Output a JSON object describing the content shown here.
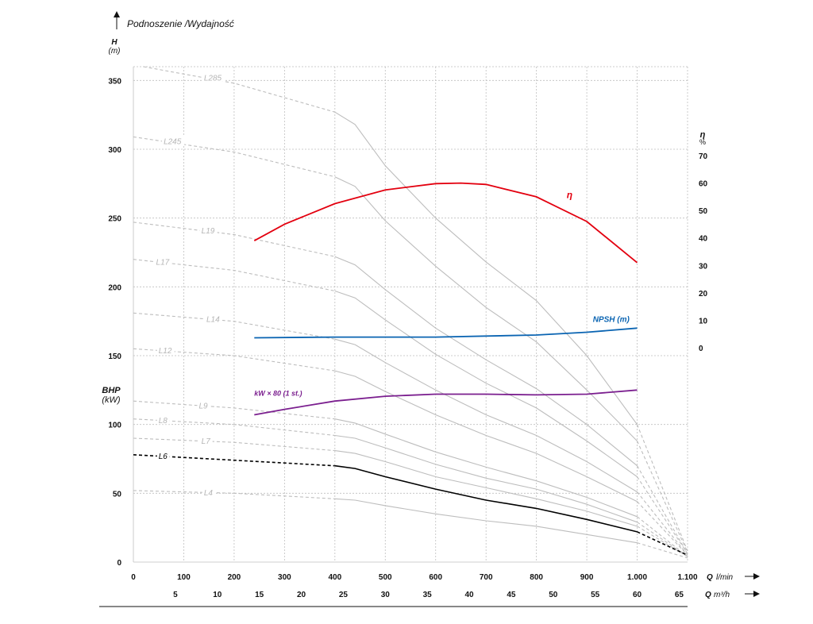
{
  "title": "Podnoszenie /Wydajność",
  "axes": {
    "h_label": "H",
    "h_unit": "(m)",
    "eta_label": "η",
    "eta_unit": "%",
    "bhp_label": "BHP",
    "bhp_unit": "(kW)",
    "q_lmin_label": "Q",
    "q_lmin_unit": "l/min",
    "q_m3h_label": "Q",
    "q_m3h_unit": "m³/h"
  },
  "chart_data": {
    "type": "line",
    "xlabel": "Q l/min",
    "ylabel": "H (m)",
    "xlim": [
      0,
      1100
    ],
    "ylim": [
      0,
      360
    ],
    "x_ticks": [
      0,
      100,
      200,
      300,
      400,
      500,
      600,
      700,
      800,
      900,
      1000,
      1100
    ],
    "x_tick_labels": [
      "0",
      "100",
      "200",
      "300",
      "400",
      "500",
      "600",
      "700",
      "800",
      "900",
      "1.000",
      "1.100"
    ],
    "y_ticks": [
      0,
      50,
      100,
      150,
      200,
      250,
      300,
      350
    ],
    "y_tick_labels": [
      "0",
      "50",
      "100",
      "150",
      "200",
      "250",
      "300",
      "350"
    ],
    "x2_ticks": [
      5,
      10,
      15,
      20,
      25,
      30,
      35,
      40,
      45,
      50,
      55,
      60,
      65
    ],
    "x2_tick_labels": [
      "5",
      "10",
      "15",
      "20",
      "25",
      "30",
      "35",
      "40",
      "45",
      "50",
      "55",
      "60",
      "65"
    ],
    "eta_ticks": [
      0,
      10,
      20,
      30,
      40,
      50,
      60,
      70
    ],
    "eta_tick_labels": [
      "0",
      "10",
      "20",
      "30",
      "40",
      "50",
      "60",
      "70"
    ],
    "grid": true,
    "head_curves": [
      {
        "name": "L285",
        "color": "#bdbdbd",
        "highlight": false,
        "points": [
          [
            20,
            360
          ],
          [
            200,
            348
          ],
          [
            400,
            327
          ],
          [
            440,
            318
          ],
          [
            500,
            288
          ],
          [
            600,
            250
          ],
          [
            700,
            218
          ],
          [
            800,
            190
          ],
          [
            900,
            150
          ],
          [
            1000,
            100
          ],
          [
            1100,
            8
          ]
        ]
      },
      {
        "name": "L245",
        "color": "#bdbdbd",
        "highlight": false,
        "points": [
          [
            0,
            309
          ],
          [
            200,
            298
          ],
          [
            400,
            280
          ],
          [
            440,
            273
          ],
          [
            500,
            248
          ],
          [
            600,
            215
          ],
          [
            700,
            185
          ],
          [
            800,
            160
          ],
          [
            900,
            125
          ],
          [
            1000,
            88
          ],
          [
            1100,
            7
          ]
        ]
      },
      {
        "name": "L19",
        "color": "#bdbdbd",
        "highlight": false,
        "points": [
          [
            0,
            247
          ],
          [
            200,
            238
          ],
          [
            400,
            222
          ],
          [
            440,
            216
          ],
          [
            500,
            198
          ],
          [
            600,
            170
          ],
          [
            700,
            147
          ],
          [
            800,
            126
          ],
          [
            900,
            100
          ],
          [
            1000,
            70
          ],
          [
            1100,
            6
          ]
        ]
      },
      {
        "name": "L17",
        "color": "#bdbdbd",
        "highlight": false,
        "points": [
          [
            0,
            220
          ],
          [
            200,
            212
          ],
          [
            400,
            197
          ],
          [
            440,
            192
          ],
          [
            500,
            176
          ],
          [
            600,
            151
          ],
          [
            700,
            130
          ],
          [
            800,
            112
          ],
          [
            900,
            88
          ],
          [
            1000,
            62
          ],
          [
            1100,
            6
          ]
        ]
      },
      {
        "name": "L14",
        "color": "#bdbdbd",
        "highlight": false,
        "points": [
          [
            0,
            181
          ],
          [
            200,
            175
          ],
          [
            400,
            162
          ],
          [
            440,
            158
          ],
          [
            500,
            145
          ],
          [
            600,
            125
          ],
          [
            700,
            107
          ],
          [
            800,
            92
          ],
          [
            900,
            73
          ],
          [
            1000,
            51
          ],
          [
            1100,
            5
          ]
        ]
      },
      {
        "name": "L12",
        "color": "#bdbdbd",
        "highlight": false,
        "points": [
          [
            0,
            155
          ],
          [
            200,
            150
          ],
          [
            400,
            139
          ],
          [
            440,
            135
          ],
          [
            500,
            124
          ],
          [
            600,
            107
          ],
          [
            700,
            92
          ],
          [
            800,
            79
          ],
          [
            900,
            62
          ],
          [
            1000,
            44
          ],
          [
            1100,
            5
          ]
        ]
      },
      {
        "name": "L9",
        "color": "#bdbdbd",
        "highlight": false,
        "points": [
          [
            0,
            117
          ],
          [
            200,
            112
          ],
          [
            400,
            104
          ],
          [
            440,
            101
          ],
          [
            500,
            93
          ],
          [
            600,
            80
          ],
          [
            700,
            69
          ],
          [
            800,
            59
          ],
          [
            900,
            47
          ],
          [
            1000,
            33
          ],
          [
            1100,
            4
          ]
        ]
      },
      {
        "name": "L8",
        "color": "#bdbdbd",
        "highlight": false,
        "points": [
          [
            0,
            104
          ],
          [
            200,
            100
          ],
          [
            400,
            92
          ],
          [
            440,
            90
          ],
          [
            500,
            83
          ],
          [
            600,
            71
          ],
          [
            700,
            61
          ],
          [
            800,
            53
          ],
          [
            900,
            42
          ],
          [
            1000,
            29
          ],
          [
            1100,
            4
          ]
        ]
      },
      {
        "name": "L7",
        "color": "#bdbdbd",
        "highlight": false,
        "points": [
          [
            0,
            90
          ],
          [
            200,
            87
          ],
          [
            400,
            81
          ],
          [
            440,
            79
          ],
          [
            500,
            73
          ],
          [
            600,
            62
          ],
          [
            700,
            54
          ],
          [
            800,
            46
          ],
          [
            900,
            37
          ],
          [
            1000,
            26
          ],
          [
            1100,
            4
          ]
        ]
      },
      {
        "name": "L6",
        "color": "#000000",
        "highlight": true,
        "points": [
          [
            0,
            78
          ],
          [
            200,
            74
          ],
          [
            400,
            70
          ],
          [
            440,
            68
          ],
          [
            500,
            62
          ],
          [
            600,
            53
          ],
          [
            700,
            45
          ],
          [
            800,
            39
          ],
          [
            900,
            31
          ],
          [
            1000,
            22
          ],
          [
            1100,
            5
          ]
        ]
      },
      {
        "name": "L4",
        "color": "#bdbdbd",
        "highlight": false,
        "points": [
          [
            0,
            52
          ],
          [
            200,
            50
          ],
          [
            400,
            46
          ],
          [
            440,
            45
          ],
          [
            500,
            41
          ],
          [
            600,
            35
          ],
          [
            700,
            30
          ],
          [
            800,
            26
          ],
          [
            900,
            20
          ],
          [
            1000,
            14
          ],
          [
            1100,
            3
          ]
        ]
      }
    ],
    "operating_range": [
      240,
      1000
    ],
    "efficiency": {
      "name": "η",
      "color": "#e3000f",
      "points": [
        [
          240,
          39
        ],
        [
          300,
          45
        ],
        [
          400,
          52.5
        ],
        [
          500,
          57.5
        ],
        [
          600,
          59.8
        ],
        [
          650,
          60
        ],
        [
          700,
          59.5
        ],
        [
          800,
          55
        ],
        [
          900,
          46
        ],
        [
          1000,
          31
        ]
      ]
    },
    "npsh": {
      "name": "NPSH (m)",
      "color": "#0a64b2",
      "points": [
        [
          240,
          163
        ],
        [
          400,
          163.5
        ],
        [
          600,
          163.5
        ],
        [
          800,
          165
        ],
        [
          900,
          167
        ],
        [
          1000,
          170
        ]
      ]
    },
    "power": {
      "name": "kW × 80 (1 st.)",
      "color": "#7b1f8f",
      "points": [
        [
          240,
          107
        ],
        [
          300,
          111
        ],
        [
          400,
          117
        ],
        [
          500,
          120.5
        ],
        [
          600,
          122
        ],
        [
          700,
          122
        ],
        [
          800,
          121.5
        ],
        [
          900,
          122
        ],
        [
          1000,
          125
        ]
      ]
    }
  }
}
